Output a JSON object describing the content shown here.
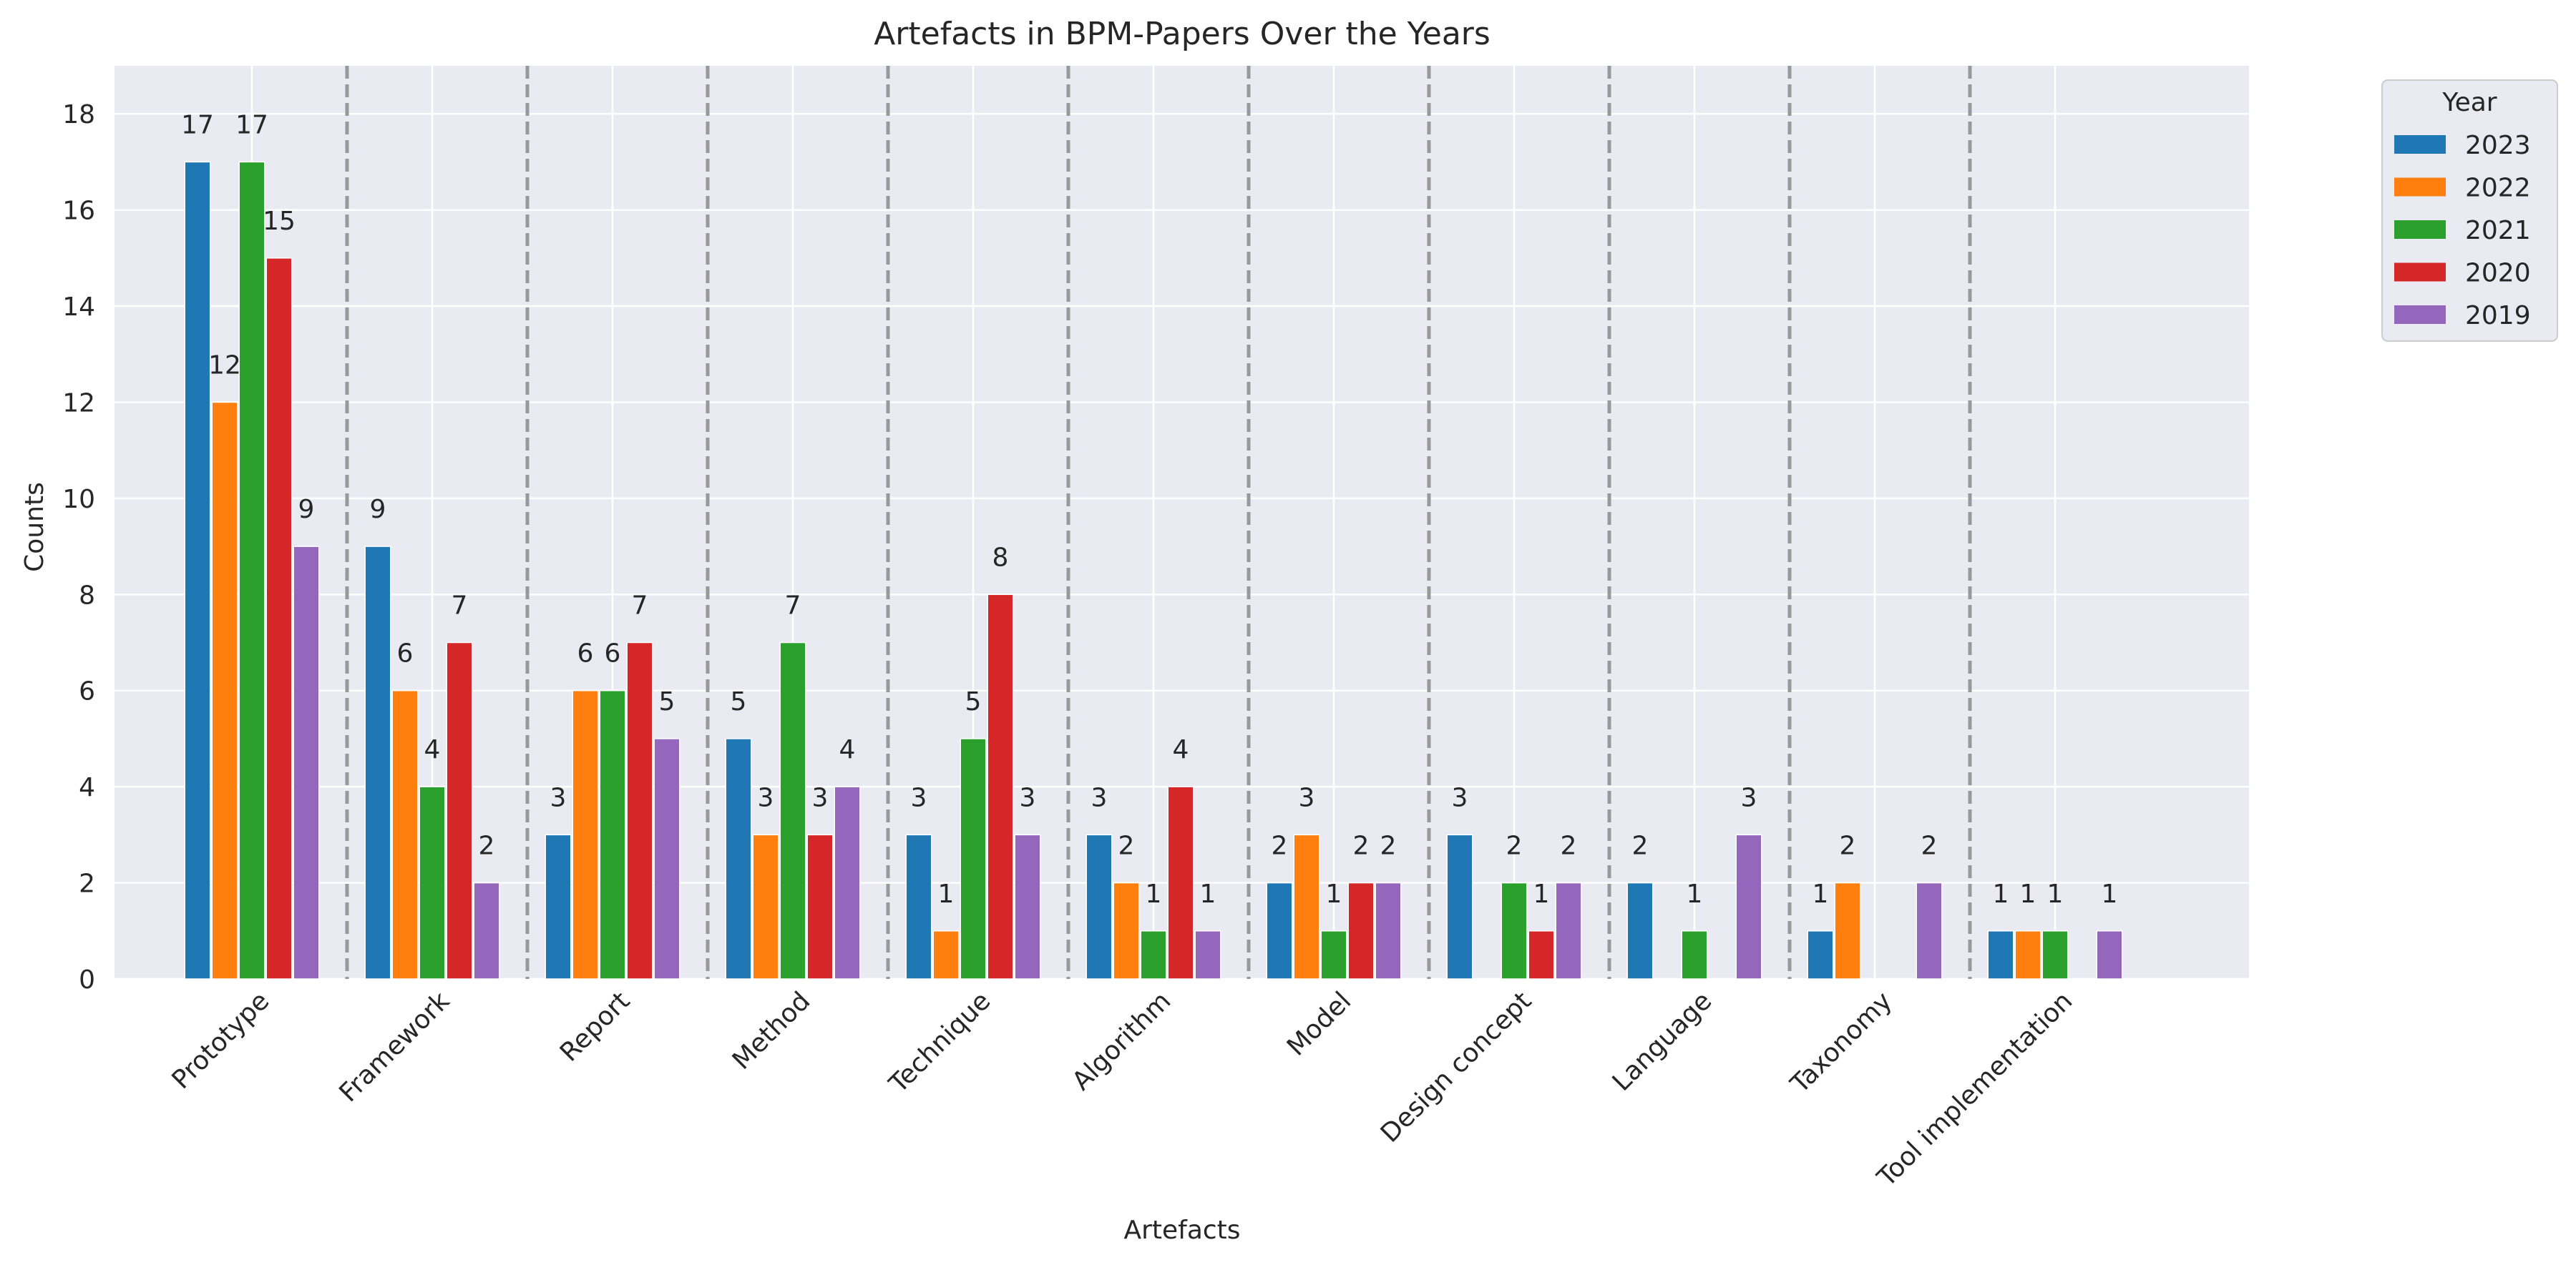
{
  "chart_data": {
    "type": "bar",
    "title": "Artefacts in BPM-Papers Over the Years",
    "xlabel": "Artefacts",
    "ylabel": "Counts",
    "ylim": [
      0,
      19
    ],
    "yticks": [
      0,
      2,
      4,
      6,
      8,
      10,
      12,
      14,
      16,
      18
    ],
    "grid": true,
    "legend": {
      "title": "Year",
      "placement": "outside-top-right"
    },
    "categories": [
      "Prototype",
      "Framework",
      "Report",
      "Method",
      "Technique",
      "Algorithm",
      "Model",
      "Design concept",
      "Language",
      "Taxonomy",
      "Tool implementation"
    ],
    "series": [
      {
        "name": "2023",
        "color": "#1f77b4",
        "values": [
          17,
          9,
          3,
          5,
          3,
          3,
          2,
          3,
          2,
          1,
          1
        ]
      },
      {
        "name": "2022",
        "color": "#ff7f0e",
        "values": [
          12,
          6,
          6,
          3,
          1,
          2,
          3,
          0,
          0,
          2,
          1
        ]
      },
      {
        "name": "2021",
        "color": "#2ca02c",
        "values": [
          17,
          4,
          6,
          7,
          5,
          1,
          1,
          2,
          1,
          0,
          1
        ]
      },
      {
        "name": "2020",
        "color": "#d62728",
        "values": [
          15,
          7,
          7,
          3,
          8,
          4,
          2,
          1,
          0,
          0,
          0
        ]
      },
      {
        "name": "2019",
        "color": "#9467bd",
        "values": [
          9,
          2,
          5,
          4,
          3,
          1,
          2,
          2,
          3,
          2,
          1
        ]
      }
    ],
    "colors": {
      "plot_background": "#eaeaf2",
      "grid": "#ffffff",
      "separator": "#999999"
    }
  }
}
